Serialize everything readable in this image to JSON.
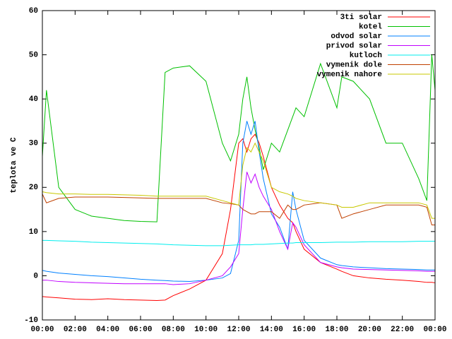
{
  "chart_data": {
    "type": "line",
    "ylabel": "teplota ve C",
    "x": [
      0,
      0.25,
      1,
      2,
      3,
      4,
      5,
      6,
      7,
      7.5,
      8,
      9,
      10,
      11,
      11.5,
      12,
      12.25,
      12.5,
      12.75,
      13,
      13.25,
      13.5,
      14,
      14.5,
      15,
      15.3,
      15.5,
      16,
      17,
      18,
      18.3,
      19,
      20,
      21,
      22,
      23,
      23.5,
      23.8,
      24
    ],
    "xlim": [
      0,
      24
    ],
    "xticks": [
      {
        "value": 0,
        "label": "00:00"
      },
      {
        "value": 2,
        "label": "02:00"
      },
      {
        "value": 4,
        "label": "04:00"
      },
      {
        "value": 6,
        "label": "06:00"
      },
      {
        "value": 8,
        "label": "08:00"
      },
      {
        "value": 10,
        "label": "10:00"
      },
      {
        "value": 12,
        "label": "12:00"
      },
      {
        "value": 14,
        "label": "14:00"
      },
      {
        "value": 16,
        "label": "16:00"
      },
      {
        "value": 18,
        "label": "18:00"
      },
      {
        "value": 20,
        "label": "20:00"
      },
      {
        "value": 22,
        "label": "22:00"
      },
      {
        "value": 24,
        "label": "00:00"
      }
    ],
    "ylim": [
      -10,
      60
    ],
    "yticks": [
      -10,
      0,
      10,
      20,
      30,
      40,
      50,
      60
    ],
    "grid": false,
    "legend": "top-right",
    "series": [
      {
        "name": "3ti solar",
        "color": "#ff0000",
        "values": [
          -4.7,
          -4.8,
          -5,
          -5.3,
          -5.4,
          -5.2,
          -5.4,
          -5.5,
          -5.6,
          -5.5,
          -4.5,
          -3,
          -1,
          5,
          15,
          30,
          31,
          28,
          31,
          32,
          30,
          27,
          20,
          16,
          13,
          12,
          10,
          6,
          3,
          1.5,
          1,
          0,
          -0.5,
          -0.8,
          -1,
          -1.3,
          -1.5,
          -1.5,
          -1.6
        ]
      },
      {
        "name": "kotel",
        "color": "#00c000",
        "values": [
          27,
          42,
          20,
          15,
          13.5,
          13,
          12.5,
          12.3,
          12.2,
          46,
          47,
          47.5,
          44,
          30,
          26,
          32,
          40,
          45,
          38,
          33,
          29,
          24,
          30,
          28,
          33,
          36,
          38,
          36,
          48,
          38,
          45,
          44,
          40,
          30,
          30,
          22,
          17,
          50,
          42
        ]
      },
      {
        "name": "odvod solar",
        "color": "#0080ff",
        "values": [
          1.2,
          1,
          0.6,
          0.3,
          0,
          -0.2,
          -0.5,
          -0.8,
          -1,
          -1.1,
          -1.2,
          -1.3,
          -1,
          -0.5,
          0.5,
          8,
          30,
          35,
          32,
          35,
          28,
          22,
          14,
          11,
          6,
          19,
          15,
          8,
          4,
          2.5,
          2.3,
          2,
          1.8,
          1.6,
          1.5,
          1.4,
          1.3,
          1.3,
          1.3
        ]
      },
      {
        "name": "privod solar",
        "color": "#c000ff",
        "values": [
          -1,
          -1,
          -1.3,
          -1.5,
          -1.6,
          -1.7,
          -1.8,
          -1.8,
          -1.8,
          -1.8,
          -2,
          -1.8,
          -1,
          0,
          2,
          5,
          15,
          23.5,
          21,
          23,
          20,
          18,
          15,
          10,
          6,
          12,
          11,
          7,
          3,
          2,
          1.8,
          1.5,
          1.4,
          1.3,
          1.2,
          1.1,
          1,
          1,
          1
        ]
      },
      {
        "name": "kutloch",
        "color": "#00eeee",
        "values": [
          8,
          8,
          7.9,
          7.8,
          7.6,
          7.5,
          7.4,
          7.3,
          7.2,
          7.1,
          7,
          6.9,
          6.8,
          6.8,
          6.9,
          7,
          7,
          7,
          7,
          7.1,
          7.1,
          7.1,
          7.2,
          7.3,
          7.4,
          7.4,
          7.5,
          7.5,
          7.5,
          7.6,
          7.6,
          7.6,
          7.7,
          7.7,
          7.7,
          7.8,
          7.8,
          7.8,
          7.8
        ]
      },
      {
        "name": "vymenik dole",
        "color": "#c04000",
        "values": [
          18.5,
          16.5,
          17.5,
          17.8,
          17.8,
          17.8,
          17.7,
          17.6,
          17.5,
          17.5,
          17.5,
          17.5,
          17.5,
          16.5,
          16.3,
          16,
          15,
          14.5,
          14,
          14,
          14.5,
          14.5,
          14.5,
          13,
          16,
          15,
          15,
          16,
          16.5,
          16,
          13,
          14,
          15,
          16,
          16,
          16,
          15.5,
          11.5,
          11.5
        ]
      },
      {
        "name": "vymenik nahore",
        "color": "#c8c800",
        "values": [
          19,
          18.8,
          18.5,
          18.5,
          18.4,
          18.4,
          18.3,
          18.2,
          18,
          18,
          18,
          18,
          18,
          17,
          16.5,
          16,
          25,
          29,
          28,
          30,
          28,
          26,
          20,
          19,
          18.5,
          18,
          17.5,
          17,
          16.5,
          16,
          15.5,
          15.5,
          16.5,
          16.5,
          16.5,
          16.5,
          16,
          13,
          13
        ]
      }
    ]
  }
}
